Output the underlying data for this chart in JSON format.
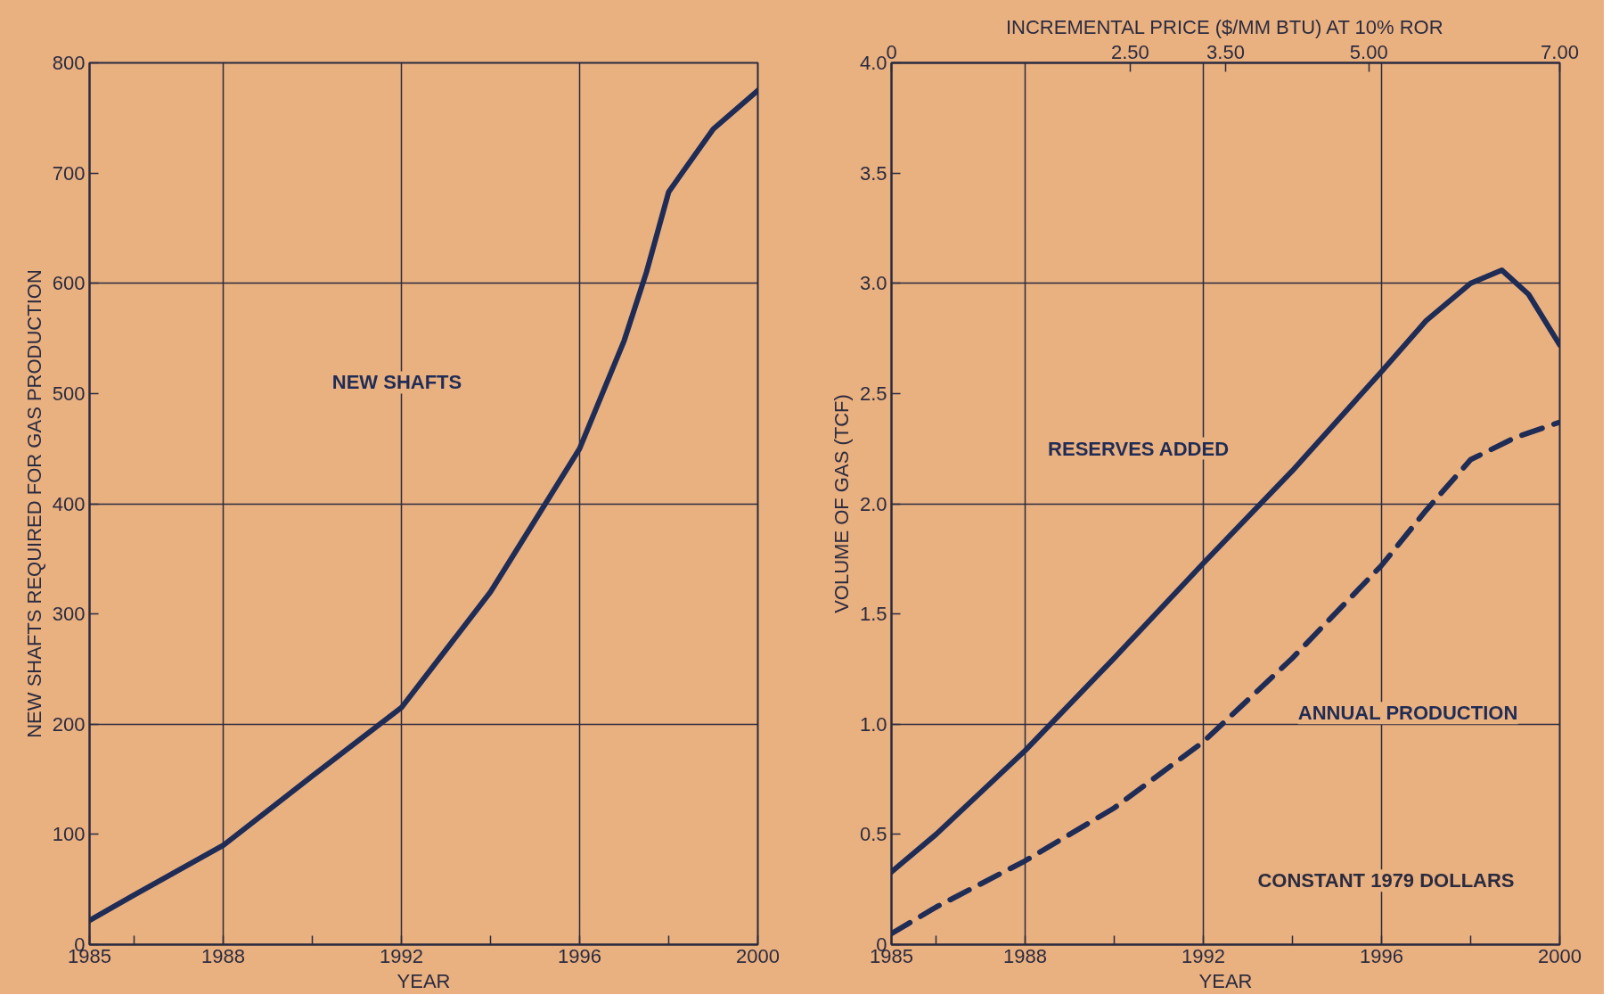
{
  "chart_data": [
    {
      "type": "line",
      "xlabel": "YEAR",
      "ylabel": "NEW SHAFTS REQUIRED FOR GAS PRODUCTION",
      "xlim": [
        1985,
        2000
      ],
      "ylim": [
        0,
        800
      ],
      "xticks": [
        1985,
        {
          "value": 1986,
          "label": null
        },
        1988,
        {
          "value": 1990,
          "label": null
        },
        1992,
        {
          "value": 1994,
          "label": null
        },
        1996,
        {
          "value": 1998,
          "label": null
        },
        2000
      ],
      "yticks": [
        0,
        100,
        200,
        300,
        400,
        500,
        600,
        700,
        800
      ],
      "grid": true,
      "line_style": "solid",
      "series": [
        {
          "name": "NEW SHAFTS",
          "color": "#1f2c55",
          "x": [
            1985,
            1986,
            1988,
            1990,
            1992,
            1994,
            1995,
            1996,
            1997,
            1997.5,
            1998,
            1999,
            2000
          ],
          "values": [
            22,
            45,
            90,
            153,
            215,
            320,
            385,
            450,
            548,
            610,
            683,
            740,
            775
          ]
        }
      ]
    },
    {
      "type": "line",
      "xlabel": "YEAR",
      "ylabel": "VOLUME OF GAS (TCF)",
      "x2label": "INCREMENTAL PRICE ($/MM BTU) AT 10% ROR",
      "xlim": [
        1985,
        2000
      ],
      "x2lim": [
        0,
        7
      ],
      "ylim": [
        0,
        4
      ],
      "xticks": [
        1985,
        {
          "value": 1986,
          "label": null
        },
        1988,
        {
          "value": 1990,
          "label": null
        },
        1992,
        {
          "value": 1994,
          "label": null
        },
        1996,
        {
          "value": 1998,
          "label": null
        },
        2000
      ],
      "x2ticks": [
        0,
        {
          "value": 2.5,
          "label": "2.50"
        },
        {
          "value": 3.5,
          "label": "3.50"
        },
        {
          "value": 5,
          "label": "5.00"
        },
        {
          "value": 7,
          "label": "7.00"
        }
      ],
      "yticks": [
        0,
        0.5,
        {
          "value": 1,
          "label": "1.0"
        },
        1.5,
        {
          "value": 2,
          "label": "2.0"
        },
        2.5,
        {
          "value": 3,
          "label": "3.0"
        },
        3.5,
        {
          "value": 4,
          "label": "4.0"
        }
      ],
      "grid": true,
      "annotations": [
        "CONSTANT 1979 DOLLARS"
      ],
      "series": [
        {
          "name": "RESERVES ADDED",
          "color": "#1f2c55",
          "line_style": "solid",
          "x": [
            1985,
            1986,
            1988,
            1990,
            1992,
            1994,
            1996,
            1997,
            1998,
            1998.7,
            1999.3,
            2000
          ],
          "values": [
            0.33,
            0.5,
            0.88,
            1.3,
            1.73,
            2.15,
            2.6,
            2.83,
            3.0,
            3.06,
            2.95,
            2.72
          ]
        },
        {
          "name": "ANNUAL PRODUCTION",
          "color": "#1f2c55",
          "line_style": "dashed",
          "x": [
            1985,
            1986,
            1988,
            1990,
            1992,
            1994,
            1996,
            1997,
            1998,
            1999,
            2000
          ],
          "values": [
            0.05,
            0.17,
            0.38,
            0.62,
            0.92,
            1.3,
            1.72,
            1.97,
            2.2,
            2.3,
            2.37
          ]
        }
      ]
    }
  ]
}
